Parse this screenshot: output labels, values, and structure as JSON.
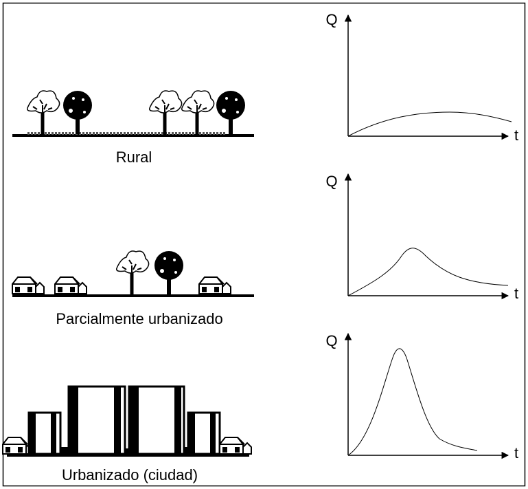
{
  "panels": [
    {
      "label": "Rural",
      "y_label": "Q",
      "x_label": "t"
    },
    {
      "label": "Parcialmente urbanizado",
      "y_label": "Q",
      "x_label": "t"
    },
    {
      "label": "Urbanizado (ciudad)",
      "y_label": "Q",
      "x_label": "t"
    }
  ]
}
